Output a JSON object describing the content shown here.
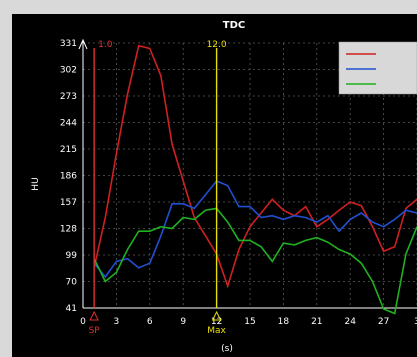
{
  "chart_data": {
    "type": "line",
    "title": "TDC",
    "xlabel": "(s)",
    "ylabel": "HU",
    "xlim": [
      0,
      30
    ],
    "ylim": [
      41,
      331
    ],
    "x_ticks": [
      "0",
      "3",
      "6",
      "9",
      "12",
      "15",
      "18",
      "21",
      "24",
      "27",
      "3"
    ],
    "y_ticks": [
      "331",
      "302",
      "273",
      "244",
      "215",
      "186",
      "157",
      "128",
      "99",
      "70",
      "41"
    ],
    "grid": true,
    "legend_position": "top-right",
    "markers": [
      {
        "label": "1.0",
        "x": 1.0,
        "color": "#e03030",
        "bottom_label": "SP"
      },
      {
        "label": "12.0",
        "x": 12.0,
        "color": "#e8e000",
        "bottom_label": "Max"
      }
    ],
    "series": [
      {
        "color": "#d02020",
        "x": [
          1,
          2,
          3,
          4,
          5,
          6,
          7,
          8,
          9,
          10,
          11,
          12,
          13,
          14,
          15,
          16,
          17,
          18,
          19,
          20,
          21,
          22,
          23,
          24,
          25,
          26,
          27,
          28,
          29,
          30
        ],
        "y": [
          85,
          140,
          210,
          275,
          328,
          325,
          295,
          220,
          180,
          140,
          120,
          100,
          65,
          105,
          130,
          145,
          160,
          148,
          142,
          152,
          130,
          138,
          148,
          157,
          153,
          130,
          103,
          108,
          150,
          160
        ]
      },
      {
        "color": "#2050d0",
        "x": [
          1,
          2,
          3,
          4,
          5,
          6,
          7,
          8,
          9,
          10,
          11,
          12,
          13,
          14,
          15,
          16,
          17,
          18,
          19,
          20,
          21,
          22,
          23,
          24,
          25,
          26,
          27,
          28,
          29,
          30
        ],
        "y": [
          90,
          75,
          92,
          95,
          85,
          90,
          120,
          155,
          155,
          150,
          165,
          180,
          175,
          152,
          152,
          140,
          142,
          138,
          142,
          140,
          135,
          142,
          125,
          138,
          145,
          135,
          130,
          138,
          148,
          145
        ]
      },
      {
        "color": "#20b020",
        "x": [
          1,
          2,
          3,
          4,
          5,
          6,
          7,
          8,
          9,
          10,
          11,
          12,
          13,
          14,
          15,
          16,
          17,
          18,
          19,
          20,
          21,
          22,
          23,
          24,
          25,
          26,
          27,
          28,
          29,
          30
        ],
        "y": [
          95,
          70,
          80,
          105,
          125,
          125,
          130,
          128,
          140,
          138,
          148,
          150,
          135,
          115,
          115,
          108,
          92,
          112,
          110,
          115,
          118,
          113,
          105,
          100,
          90,
          70,
          40,
          35,
          100,
          130
        ]
      }
    ]
  }
}
